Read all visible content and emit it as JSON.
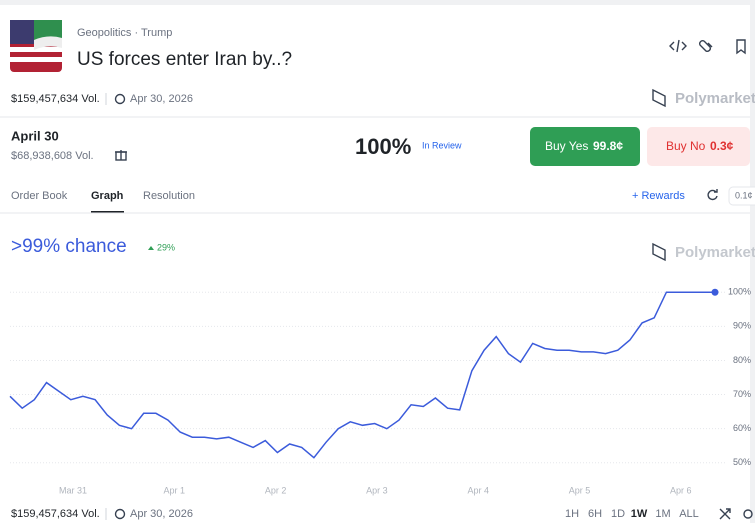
{
  "header": {
    "breadcrumb": "Geopolitics · Trump",
    "title": "US forces enter Iran by..?",
    "volume": "$159,457,634 Vol.",
    "end_date": "Apr 30, 2026",
    "brand": "Polymarket"
  },
  "market": {
    "name": "April 30",
    "volume": "$68,938,608 Vol.",
    "probability": "100%",
    "status": "In Review",
    "buy_yes": "Buy Yes",
    "yes_price": "99.8¢",
    "buy_no": "Buy No",
    "no_price": "0.3¢"
  },
  "tabs": [
    "Order Book",
    "Graph",
    "Resolution"
  ],
  "toolbar": {
    "rewards": "+ Rewards",
    "spread": "0.1¢"
  },
  "chart_data": {
    "type": "line",
    "title": ">99% chance",
    "change": "29%",
    "watermark": "Polymarket",
    "x_labels": [
      "Mar 31",
      "Apr 1",
      "Apr 2",
      "Apr 3",
      "Apr 4",
      "Apr 5",
      "Apr 6"
    ],
    "values": [
      69.5,
      66,
      68.5,
      73.5,
      71,
      68.5,
      69.5,
      68.5,
      64,
      61,
      60,
      64.5,
      64.5,
      62.5,
      59,
      57.5,
      57.5,
      57,
      57.5,
      56,
      54.5,
      56.5,
      53,
      55.5,
      54.5,
      51.5,
      56,
      60,
      62,
      61,
      61.5,
      60,
      62.5,
      67,
      66.5,
      69,
      66,
      65.5,
      77,
      83,
      87,
      82,
      79.5,
      85,
      83.5,
      83,
      83,
      82.5,
      82.5,
      82,
      83,
      86,
      91,
      92.5,
      100,
      100,
      100,
      100,
      100
    ],
    "color": "#3b5bdb",
    "ylim": [
      47,
      103
    ],
    "yticks": [
      {
        "value": 100,
        "label": "100%"
      },
      {
        "value": 90,
        "label": "90%"
      },
      {
        "value": 80,
        "label": "80%"
      },
      {
        "value": 70,
        "label": "70%"
      },
      {
        "value": 60,
        "label": "60%"
      },
      {
        "value": 50,
        "label": "50%"
      }
    ],
    "grid": true
  },
  "footer": {
    "volume": "$159,457,634 Vol.",
    "end_date": "Apr 30, 2026",
    "ranges": [
      "1H",
      "6H",
      "1D",
      "1W",
      "1M",
      "ALL"
    ]
  }
}
